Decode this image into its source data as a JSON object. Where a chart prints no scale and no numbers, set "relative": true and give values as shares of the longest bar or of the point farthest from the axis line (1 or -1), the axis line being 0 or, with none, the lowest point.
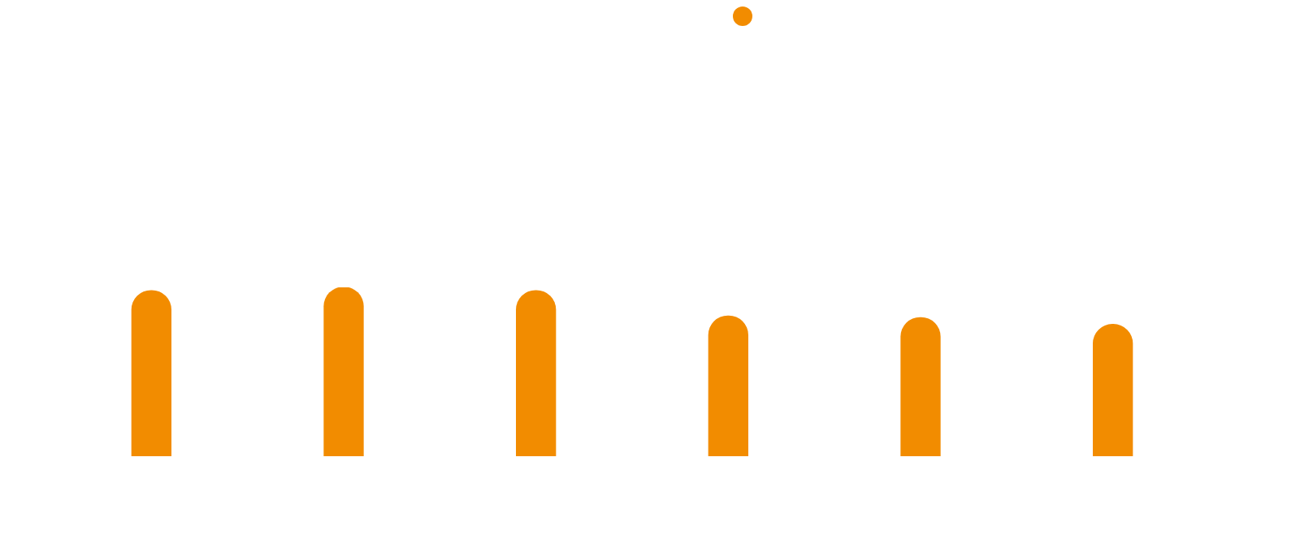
{
  "chart_data": {
    "type": "bar",
    "relative": true,
    "categories": [
      null,
      null,
      null,
      null,
      null,
      null
    ],
    "values": [
      0.98,
      1,
      0.98,
      0.83,
      0.82,
      0.78
    ],
    "color": "#f28c00"
  }
}
